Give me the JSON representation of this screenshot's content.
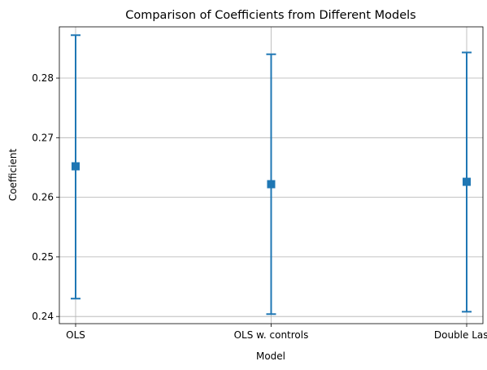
{
  "chart_data": {
    "type": "scatter",
    "title": "Comparison of Coefficients from Different Models",
    "xlabel": "Model",
    "ylabel": "Coefficient",
    "categories": [
      "OLS",
      "OLS w. controls",
      "Double Lasso"
    ],
    "values": [
      0.2652,
      0.2622,
      0.2626
    ],
    "ci_lower": [
      0.243,
      0.2404,
      0.2408
    ],
    "ci_upper": [
      0.2872,
      0.284,
      0.2843
    ],
    "ylim": [
      0.2388,
      0.2886
    ],
    "yticks": [
      "0.24",
      "0.25",
      "0.26",
      "0.27",
      "0.28"
    ],
    "ytick_values": [
      0.24,
      0.25,
      0.26,
      0.27,
      0.28
    ],
    "grid": true,
    "marker": "square",
    "color": "#1f77b4"
  }
}
